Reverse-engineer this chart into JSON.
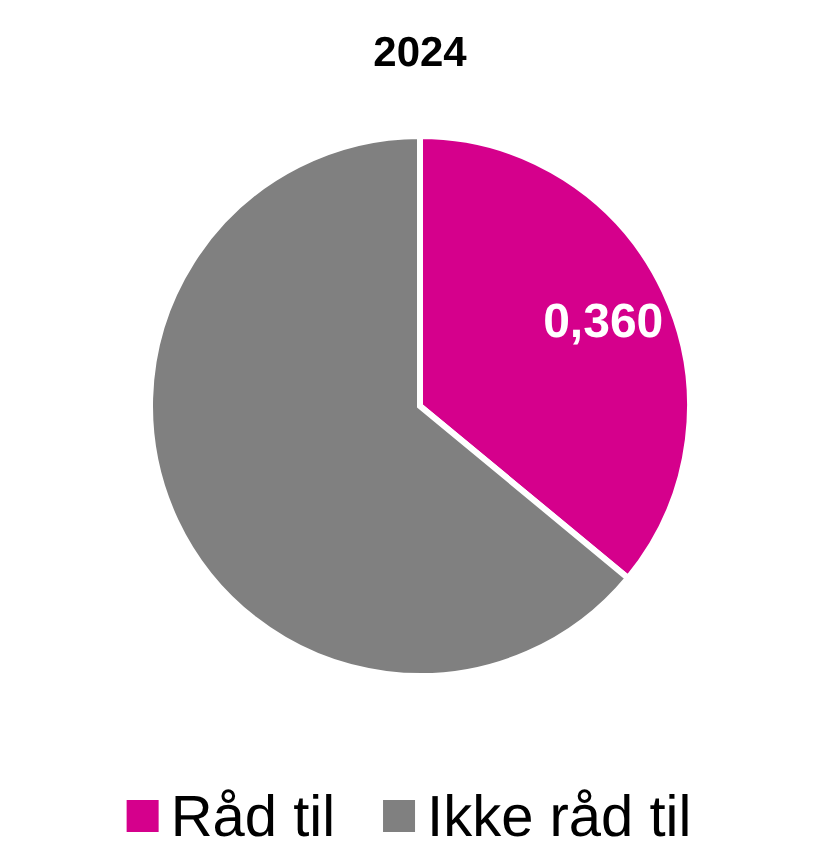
{
  "chart_data": {
    "type": "pie",
    "title": "2024",
    "categories": [
      "Råd til",
      "Ikke råd til"
    ],
    "values": [
      0.36,
      0.64
    ],
    "colors": [
      "#d5008c",
      "#808080"
    ],
    "value_labels": [
      "0,360",
      null
    ],
    "legend": "bottom"
  }
}
